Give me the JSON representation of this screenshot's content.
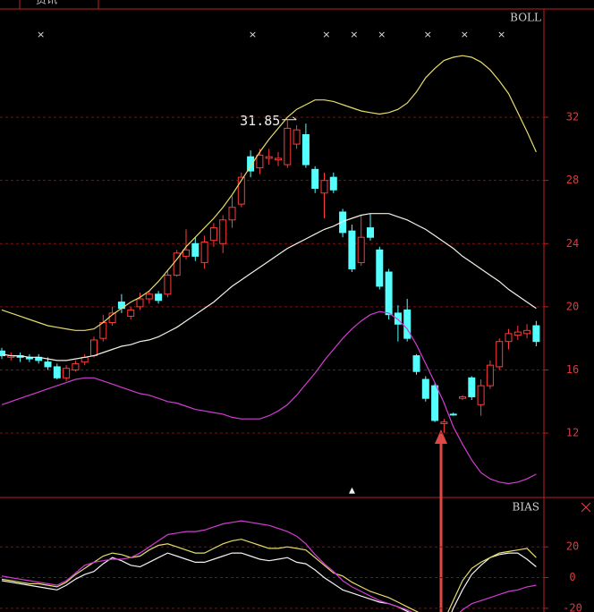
{
  "tab": "资讯",
  "chart_data": [
    {
      "type": "candlestick",
      "title": "BOLL",
      "open": [
        17.2,
        16.8,
        16.9,
        16.8,
        16.8,
        16.5,
        16.2,
        15.5,
        16.0,
        16.5,
        16.9,
        18.0,
        19.0,
        20.3,
        19.4,
        20.0,
        20.5,
        20.8,
        20.8,
        22.0,
        23.2,
        24.0,
        22.8,
        24.2,
        24.0,
        25.5,
        26.5,
        29.5,
        28.8,
        29.4,
        29.3,
        29.0,
        30.3,
        30.9,
        28.7,
        27.2,
        28.2,
        26.0,
        24.8,
        22.8,
        25.0,
        23.6,
        22.2,
        19.6,
        19.8,
        16.9,
        15.4,
        15.0,
        12.6,
        13.2,
        14.2,
        15.5,
        13.8,
        15.0,
        16.2,
        17.8,
        18.2,
        18.3,
        18.8
      ],
      "high": [
        17.4,
        17.1,
        17.1,
        17.0,
        17.0,
        16.8,
        16.4,
        16.3,
        16.6,
        17.0,
        18.1,
        19.5,
        20.0,
        20.8,
        20.0,
        20.9,
        21.0,
        21.0,
        22.3,
        23.6,
        24.9,
        24.4,
        24.5,
        25.3,
        25.8,
        27.0,
        28.5,
        29.9,
        30.0,
        30.0,
        29.8,
        31.85,
        31.5,
        31.6,
        28.9,
        28.5,
        28.5,
        26.2,
        25.2,
        25.8,
        25.9,
        23.8,
        22.4,
        20.1,
        20.5,
        17.0,
        15.6,
        15.2,
        12.9,
        13.3,
        14.4,
        15.6,
        15.4,
        16.6,
        18.0,
        18.6,
        18.8,
        18.9,
        19.1
      ],
      "low": [
        16.7,
        16.6,
        16.5,
        16.5,
        16.4,
        16.0,
        15.4,
        15.3,
        15.9,
        16.3,
        16.8,
        17.8,
        18.8,
        19.6,
        19.2,
        19.8,
        20.2,
        20.2,
        20.6,
        21.9,
        23.0,
        22.9,
        22.4,
        23.8,
        23.4,
        25.0,
        26.3,
        28.2,
        28.4,
        29.0,
        28.9,
        28.8,
        30.0,
        28.8,
        27.2,
        25.6,
        27.2,
        24.4,
        22.2,
        22.6,
        24.2,
        21.1,
        19.2,
        17.8,
        17.8,
        15.7,
        14.0,
        12.7,
        12.0,
        13.1,
        14.1,
        14.1,
        13.1,
        14.8,
        16.0,
        17.3,
        17.9,
        18.0,
        17.5
      ],
      "close": [
        16.9,
        16.9,
        16.8,
        16.7,
        16.6,
        16.2,
        15.5,
        16.1,
        16.4,
        16.8,
        17.9,
        19.0,
        19.6,
        19.9,
        19.8,
        20.5,
        20.8,
        20.4,
        22.0,
        23.4,
        23.6,
        23.2,
        24.1,
        25.0,
        25.5,
        26.3,
        28.2,
        28.6,
        29.6,
        29.5,
        29.4,
        31.3,
        31.2,
        29.0,
        27.5,
        28.0,
        27.4,
        24.7,
        22.4,
        24.4,
        24.4,
        21.3,
        19.5,
        18.9,
        18.0,
        15.9,
        14.2,
        12.8,
        12.7,
        13.2,
        14.3,
        14.3,
        15.0,
        16.3,
        17.8,
        18.3,
        18.4,
        18.5,
        17.8
      ],
      "up_color": "#ff3a3a",
      "down_color": "#54ffff",
      "bands": [
        {
          "color": "#e6dc6a",
          "values": [
            19.8,
            19.6,
            19.4,
            19.2,
            19.0,
            18.8,
            18.7,
            18.6,
            18.5,
            18.5,
            18.6,
            19.0,
            19.5,
            19.9,
            20.3,
            20.6,
            21.0,
            21.6,
            22.3,
            23.0,
            23.8,
            24.4,
            25.0,
            25.6,
            26.3,
            27.1,
            28.0,
            28.9,
            29.8,
            30.6,
            31.3,
            32.0,
            32.5,
            32.8,
            33.1,
            33.1,
            33.0,
            32.8,
            32.6,
            32.4,
            32.3,
            32.2,
            32.3,
            32.5,
            32.9,
            33.6,
            34.5,
            35.1,
            35.6,
            35.8,
            35.9,
            35.8,
            35.5,
            35.0,
            34.3,
            33.5,
            32.3,
            31.1,
            29.8
          ]
        },
        {
          "color": "#f2f2e6",
          "values": [
            17.0,
            16.9,
            16.9,
            16.8,
            16.8,
            16.7,
            16.6,
            16.6,
            16.7,
            16.8,
            16.9,
            17.1,
            17.3,
            17.5,
            17.6,
            17.8,
            17.9,
            18.1,
            18.4,
            18.7,
            19.1,
            19.5,
            19.9,
            20.3,
            20.8,
            21.3,
            21.7,
            22.1,
            22.5,
            22.9,
            23.3,
            23.7,
            24.0,
            24.3,
            24.6,
            24.9,
            25.1,
            25.4,
            25.6,
            25.8,
            25.9,
            25.9,
            25.9,
            25.7,
            25.5,
            25.2,
            24.9,
            24.5,
            24.1,
            23.7,
            23.2,
            22.8,
            22.4,
            22.0,
            21.6,
            21.1,
            20.7,
            20.3,
            19.9
          ]
        },
        {
          "color": "#d23cd2",
          "values": [
            13.8,
            14.0,
            14.2,
            14.4,
            14.6,
            14.8,
            15.0,
            15.2,
            15.4,
            15.5,
            15.5,
            15.3,
            15.1,
            14.9,
            14.7,
            14.5,
            14.4,
            14.2,
            14.0,
            13.9,
            13.7,
            13.5,
            13.4,
            13.3,
            13.2,
            13.0,
            12.9,
            12.9,
            12.9,
            13.1,
            13.4,
            13.8,
            14.4,
            15.1,
            15.8,
            16.6,
            17.3,
            18.0,
            18.6,
            19.1,
            19.5,
            19.7,
            19.6,
            19.2,
            18.6,
            17.6,
            16.4,
            15.2,
            13.9,
            12.4,
            11.3,
            10.3,
            9.5,
            9.1,
            8.9,
            8.8,
            8.9,
            9.1,
            9.4
          ]
        }
      ],
      "signals": {
        "symbol": "×",
        "indices": [
          2,
          25,
          33,
          36,
          39,
          44,
          48,
          52
        ]
      },
      "buy_mark": {
        "symbol": "▲",
        "index": 38
      },
      "ylim": [
        7.98,
        38.86
      ],
      "yticks": [
        12,
        16,
        20,
        24,
        28,
        32
      ],
      "grid": true
    },
    {
      "type": "line",
      "title": "BIAS",
      "series": [
        {
          "color": "#f2f2f2",
          "values": [
            -2,
            -3,
            -4,
            -5,
            -6,
            -7,
            -8,
            -5,
            -1,
            2,
            4,
            9,
            13,
            11,
            8,
            7,
            10,
            13,
            16,
            14,
            12,
            10,
            10,
            12,
            14,
            16,
            16,
            14,
            12,
            11,
            12,
            13,
            10,
            9,
            5,
            0,
            -4,
            -8,
            -10,
            -12,
            -14,
            -16,
            -17,
            -19,
            -22,
            -25,
            -29,
            -32,
            -34,
            -20,
            -8,
            2,
            8,
            13,
            15,
            16,
            16,
            12,
            7
          ]
        },
        {
          "color": "#e6dc6a",
          "values": [
            -1,
            -2,
            -3,
            -4,
            -4,
            -5,
            -6,
            -3,
            2,
            6,
            10,
            14,
            16,
            15,
            13,
            14,
            18,
            21,
            22,
            20,
            18,
            16,
            16,
            19,
            22,
            24,
            25,
            23,
            21,
            19,
            19,
            20,
            19,
            18,
            13,
            8,
            3,
            1,
            -3,
            -6,
            -9,
            -11,
            -13,
            -16,
            -19,
            -22,
            -25,
            -27,
            -28,
            -15,
            -2,
            6,
            10,
            13,
            16,
            17,
            18,
            19,
            13
          ]
        },
        {
          "color": "#d23cd2",
          "values": [
            1,
            0,
            -1,
            -2,
            -3,
            -4,
            -5,
            -2,
            3,
            8,
            10,
            11,
            12,
            12,
            13,
            16,
            20,
            24,
            28,
            29,
            30,
            30,
            31,
            33,
            35,
            36,
            37,
            36,
            35,
            34,
            32,
            30,
            27,
            22,
            15,
            9,
            4,
            -2,
            -6,
            -9,
            -12,
            -15,
            -17,
            -19,
            -21,
            -24,
            -28,
            -31,
            -32,
            -27,
            -21,
            -17,
            -15,
            -13,
            -11,
            -9,
            -8,
            -6,
            -5
          ]
        }
      ],
      "ylim": [
        -22.4,
        51.6
      ],
      "yticks": [
        20,
        0,
        -20
      ],
      "grid": true
    }
  ]
}
